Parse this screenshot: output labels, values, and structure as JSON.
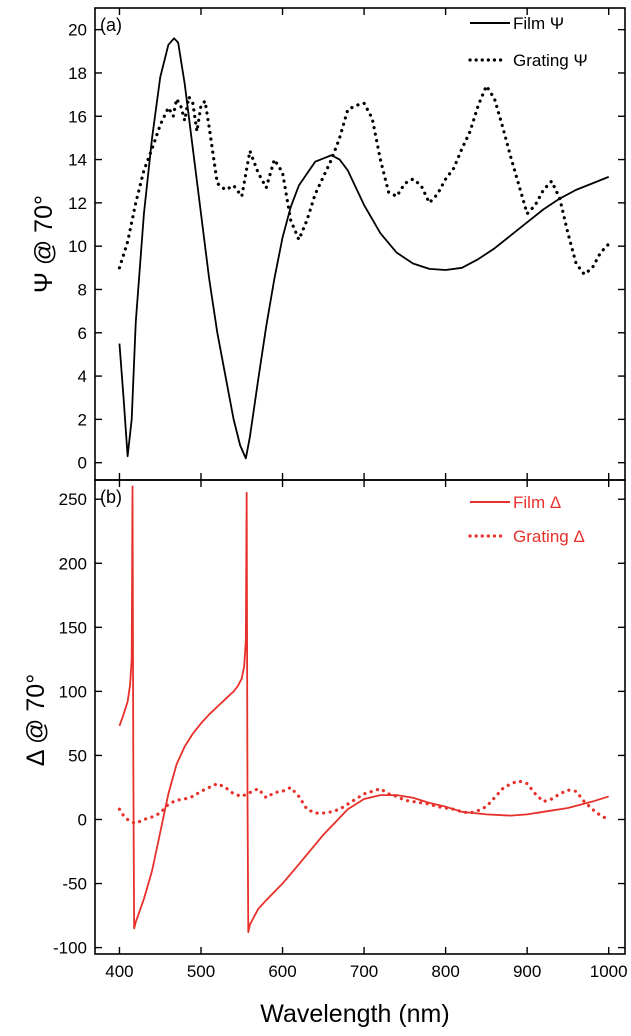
{
  "chart_data": [
    {
      "type": "line",
      "panel_label": "(a)",
      "ylabel": "Ψ @ 70°",
      "xlabel": "",
      "xlim": [
        370,
        1020
      ],
      "ylim": [
        -0.8,
        21.0
      ],
      "yticks": [
        0,
        2,
        4,
        6,
        8,
        10,
        12,
        14,
        16,
        18,
        20
      ],
      "grid": false,
      "legend_position": "top-right",
      "series": [
        {
          "name": "Film Ψ",
          "style": "solid",
          "color": "#000000",
          "x": [
            400,
            405,
            410,
            415,
            420,
            430,
            440,
            450,
            460,
            467,
            472,
            480,
            490,
            500,
            510,
            520,
            530,
            540,
            548,
            555,
            560,
            570,
            580,
            590,
            600,
            610,
            620,
            640,
            660,
            670,
            680,
            700,
            720,
            740,
            760,
            780,
            800,
            820,
            840,
            860,
            880,
            900,
            920,
            940,
            960,
            980,
            1000
          ],
          "y": [
            5.5,
            3.0,
            0.3,
            2.0,
            6.5,
            11.5,
            15.0,
            17.8,
            19.3,
            19.6,
            19.4,
            17.5,
            14.5,
            11.5,
            8.5,
            6.0,
            4.0,
            2.0,
            0.8,
            0.2,
            1.2,
            3.8,
            6.3,
            8.5,
            10.4,
            11.8,
            12.8,
            13.9,
            14.2,
            14.0,
            13.5,
            11.9,
            10.6,
            9.7,
            9.2,
            8.95,
            8.9,
            9.0,
            9.4,
            9.9,
            10.5,
            11.1,
            11.7,
            12.2,
            12.6,
            12.9,
            13.2
          ]
        },
        {
          "name": "Grating Ψ",
          "style": "dotted",
          "color": "#000000",
          "x": [
            400,
            410,
            420,
            430,
            440,
            450,
            460,
            466,
            470,
            475,
            480,
            485,
            490,
            495,
            500,
            505,
            510,
            520,
            530,
            540,
            550,
            560,
            570,
            580,
            590,
            600,
            610,
            620,
            630,
            640,
            650,
            660,
            670,
            680,
            690,
            700,
            710,
            720,
            730,
            740,
            750,
            760,
            770,
            780,
            790,
            800,
            810,
            820,
            830,
            840,
            850,
            860,
            870,
            880,
            890,
            900,
            910,
            920,
            930,
            940,
            950,
            960,
            970,
            980,
            990,
            1000
          ],
          "y": [
            9.0,
            10.2,
            12.0,
            13.5,
            14.5,
            15.6,
            16.4,
            16.0,
            16.8,
            16.5,
            15.8,
            16.9,
            16.6,
            15.3,
            16.5,
            16.7,
            15.5,
            12.9,
            12.6,
            12.8,
            12.3,
            14.4,
            13.4,
            12.7,
            14.0,
            13.4,
            11.2,
            10.3,
            11.2,
            12.4,
            13.2,
            14.0,
            15.0,
            16.3,
            16.5,
            16.6,
            15.9,
            14.0,
            12.5,
            12.3,
            12.9,
            13.1,
            12.8,
            12.0,
            12.4,
            13.1,
            13.6,
            14.5,
            15.3,
            16.5,
            17.4,
            16.8,
            15.5,
            14.1,
            12.8,
            11.5,
            11.9,
            12.6,
            13.0,
            12.2,
            10.6,
            9.2,
            8.7,
            9.0,
            9.7,
            10.1
          ]
        }
      ]
    },
    {
      "type": "line",
      "panel_label": "(b)",
      "ylabel": "Δ @ 70°",
      "xlabel": "Wavelength (nm)",
      "xlim": [
        370,
        1020
      ],
      "ylim": [
        -105,
        265
      ],
      "yticks": [
        -100,
        -50,
        0,
        50,
        100,
        150,
        200,
        250
      ],
      "xticks": [
        400,
        500,
        600,
        700,
        800,
        900,
        1000
      ],
      "grid": false,
      "legend_position": "top-right",
      "series": [
        {
          "name": "Film Δ",
          "style": "solid",
          "color": "#e8302a",
          "x": [
            400,
            405,
            410,
            413,
            415,
            416,
            417,
            418,
            420,
            430,
            440,
            450,
            460,
            470,
            480,
            490,
            500,
            510,
            520,
            530,
            540,
            545,
            550,
            553,
            555,
            556,
            557,
            558,
            560,
            570,
            580,
            600,
            620,
            650,
            680,
            700,
            720,
            740,
            760,
            780,
            800,
            820,
            850,
            880,
            900,
            920,
            950,
            980,
            1000
          ],
          "y": [
            73,
            82,
            92,
            105,
            125,
            260,
            40,
            -85,
            -80,
            -62,
            -40,
            -10,
            20,
            43,
            57,
            67,
            75,
            82,
            88,
            94,
            100,
            104,
            110,
            120,
            140,
            255,
            20,
            -88,
            -82,
            -70,
            -63,
            -50,
            -35,
            -12,
            8,
            16,
            19,
            19,
            17,
            13,
            10,
            6,
            4,
            3,
            4,
            6,
            9,
            14,
            18
          ]
        },
        {
          "name": "Grating Δ",
          "style": "dotted",
          "color": "#e8302a",
          "x": [
            400,
            405,
            410,
            415,
            420,
            430,
            440,
            450,
            460,
            470,
            480,
            490,
            500,
            510,
            520,
            530,
            540,
            550,
            560,
            570,
            580,
            590,
            600,
            610,
            620,
            630,
            640,
            650,
            660,
            670,
            680,
            690,
            700,
            710,
            720,
            730,
            740,
            750,
            760,
            770,
            780,
            790,
            800,
            810,
            820,
            830,
            840,
            850,
            860,
            870,
            880,
            890,
            900,
            910,
            920,
            930,
            940,
            950,
            960,
            970,
            980,
            990,
            1000
          ],
          "y": [
            8,
            3,
            0,
            -2,
            -3,
            0,
            2,
            5,
            12,
            15,
            16,
            18,
            22,
            25,
            28,
            25,
            20,
            18,
            21,
            24,
            17,
            21,
            22,
            25,
            18,
            8,
            5,
            5,
            6,
            8,
            12,
            16,
            20,
            22,
            24,
            20,
            18,
            15,
            14,
            13,
            12,
            10,
            9,
            8,
            6,
            5,
            7,
            10,
            17,
            24,
            28,
            30,
            28,
            20,
            14,
            16,
            20,
            23,
            22,
            14,
            8,
            3,
            0
          ]
        }
      ]
    }
  ]
}
